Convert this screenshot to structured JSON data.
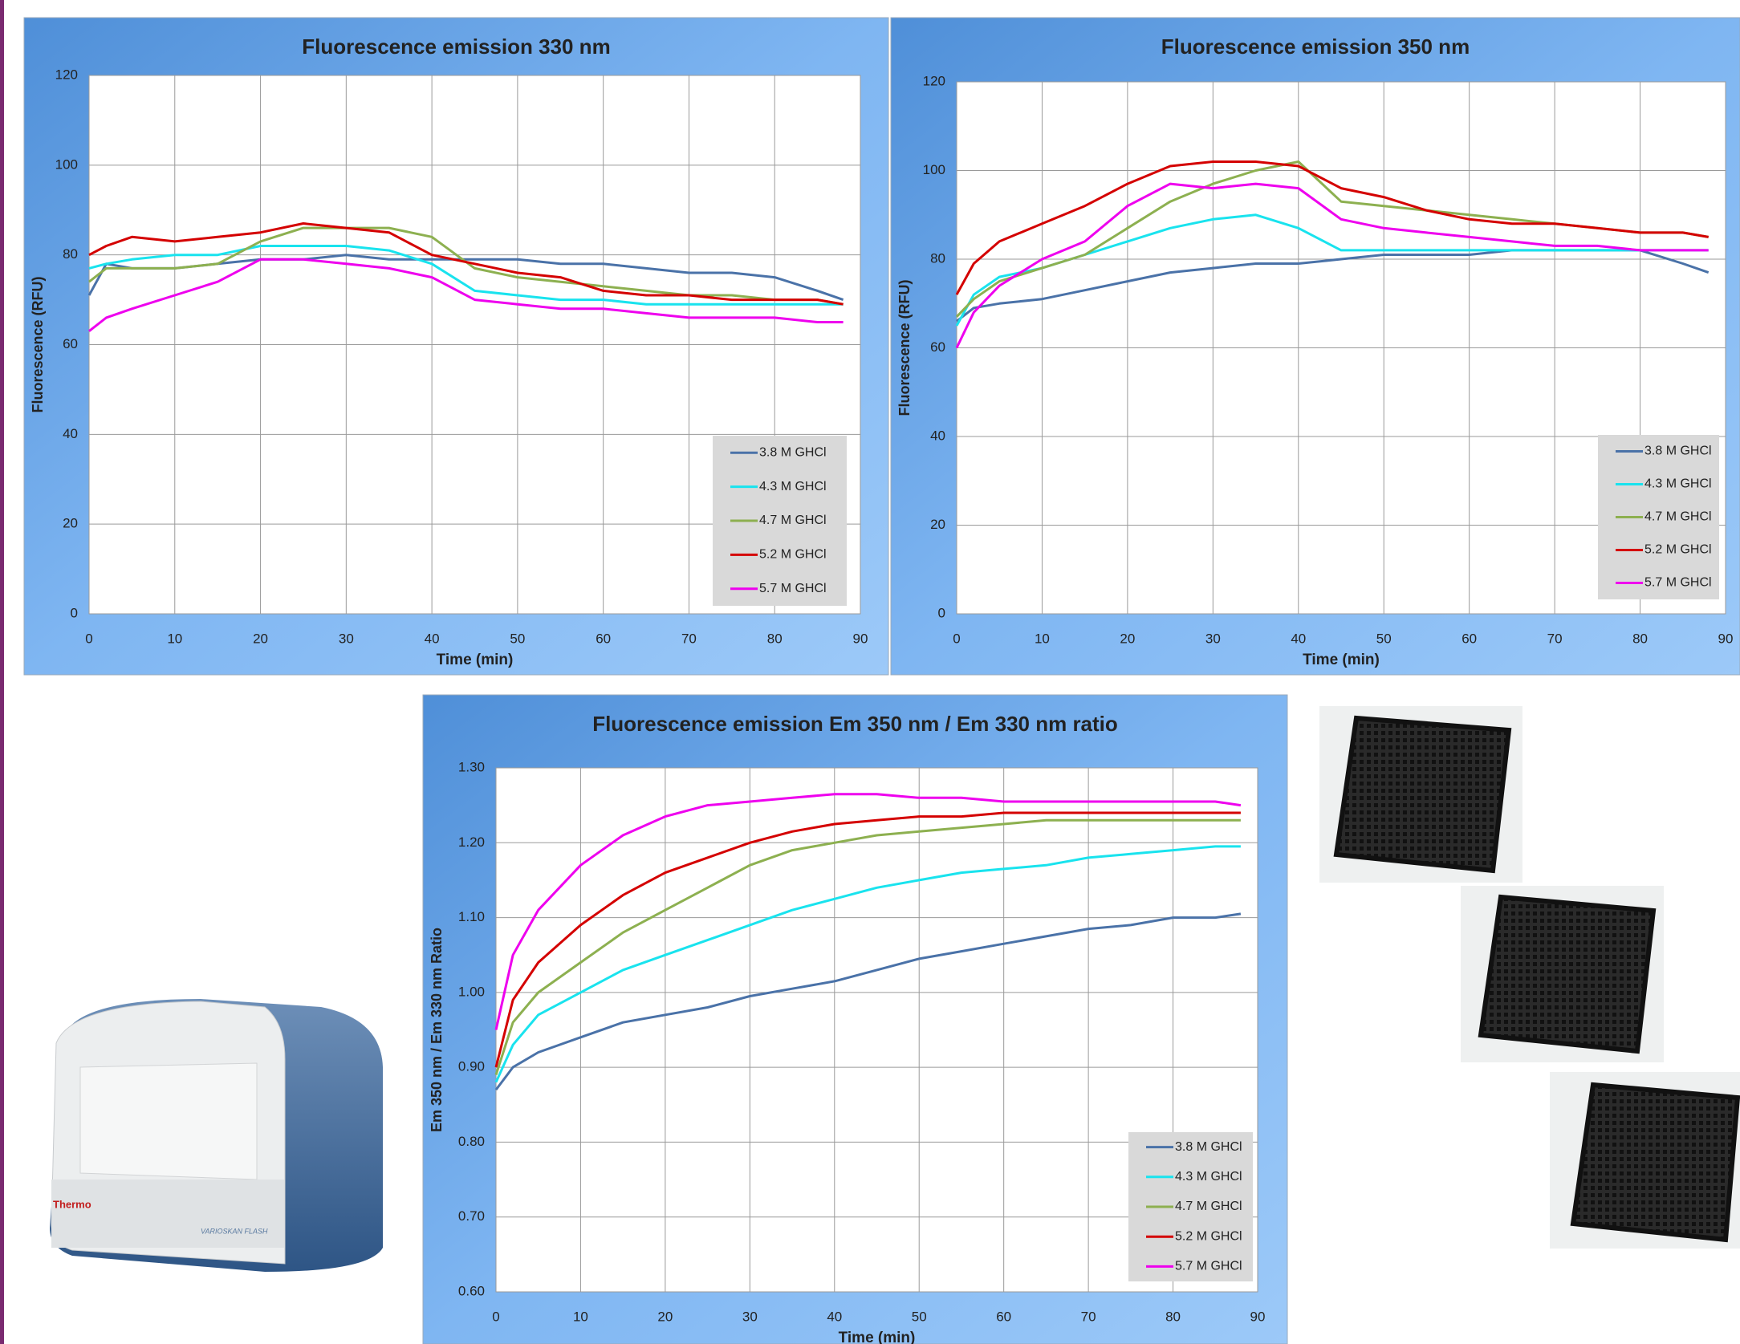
{
  "chart_data": [
    {
      "type": "line",
      "title": "Fluorescence emission 330 nm",
      "xlabel": "Time (min)",
      "ylabel": "Fluorescence (RFU)",
      "x": [
        0,
        2,
        5,
        10,
        15,
        20,
        25,
        30,
        35,
        40,
        45,
        50,
        55,
        60,
        65,
        70,
        75,
        80,
        85,
        88
      ],
      "series": [
        {
          "name": "3.8 M GHCl",
          "color": "#4a72a8",
          "values": [
            71,
            78,
            77,
            77,
            78,
            79,
            79,
            80,
            79,
            79,
            79,
            79,
            78,
            78,
            77,
            76,
            76,
            75,
            72,
            70
          ]
        },
        {
          "name": "4.3 M GHCl",
          "color": "#19e3ee",
          "values": [
            77,
            78,
            79,
            80,
            80,
            82,
            82,
            82,
            81,
            78,
            72,
            71,
            70,
            70,
            69,
            69,
            69,
            69,
            69,
            69
          ]
        },
        {
          "name": "4.7 M GHCl",
          "color": "#8db050",
          "values": [
            74,
            77,
            77,
            77,
            78,
            83,
            86,
            86,
            86,
            84,
            77,
            75,
            74,
            73,
            72,
            71,
            71,
            70,
            70,
            69
          ]
        },
        {
          "name": "5.2 M GHCl",
          "color": "#d40000",
          "values": [
            80,
            82,
            84,
            83,
            84,
            85,
            87,
            86,
            85,
            80,
            78,
            76,
            75,
            72,
            71,
            71,
            70,
            70,
            70,
            69
          ]
        },
        {
          "name": "5.7 M GHCl",
          "color": "#ee00ee",
          "values": [
            63,
            66,
            68,
            71,
            74,
            79,
            79,
            78,
            77,
            75,
            70,
            69,
            68,
            68,
            67,
            66,
            66,
            66,
            65,
            65
          ]
        }
      ],
      "xlim": [
        0,
        90
      ],
      "xticks": [
        0,
        10,
        20,
        30,
        40,
        50,
        60,
        70,
        80,
        90
      ],
      "ylim": [
        0,
        120
      ],
      "yticks": [
        0,
        20,
        40,
        60,
        80,
        100,
        120
      ],
      "grid": true,
      "legend": "lower right"
    },
    {
      "type": "line",
      "title": "Fluorescence emission 350 nm",
      "xlabel": "Time (min)",
      "ylabel": "Fluorescence (RFU)",
      "x": [
        0,
        2,
        5,
        10,
        15,
        20,
        25,
        30,
        35,
        40,
        45,
        50,
        55,
        60,
        65,
        70,
        75,
        80,
        85,
        88
      ],
      "series": [
        {
          "name": "3.8 M GHCl",
          "color": "#4a72a8",
          "values": [
            66,
            69,
            70,
            71,
            73,
            75,
            77,
            78,
            79,
            79,
            80,
            81,
            81,
            81,
            82,
            82,
            82,
            82,
            79,
            77
          ]
        },
        {
          "name": "4.3 M GHCl",
          "color": "#19e3ee",
          "values": [
            65,
            72,
            76,
            78,
            81,
            84,
            87,
            89,
            90,
            87,
            82,
            82,
            82,
            82,
            82,
            82,
            82,
            82,
            82,
            82
          ]
        },
        {
          "name": "4.7 M GHCl",
          "color": "#8db050",
          "values": [
            67,
            71,
            75,
            78,
            81,
            87,
            93,
            97,
            100,
            102,
            93,
            92,
            91,
            90,
            89,
            88,
            87,
            86,
            86,
            85
          ]
        },
        {
          "name": "5.2 M GHCl",
          "color": "#d40000",
          "values": [
            72,
            79,
            84,
            88,
            92,
            97,
            101,
            102,
            102,
            101,
            96,
            94,
            91,
            89,
            88,
            88,
            87,
            86,
            86,
            85
          ]
        },
        {
          "name": "5.7 M GHCl",
          "color": "#ee00ee",
          "values": [
            60,
            68,
            74,
            80,
            84,
            92,
            97,
            96,
            97,
            96,
            89,
            87,
            86,
            85,
            84,
            83,
            83,
            82,
            82,
            82
          ]
        }
      ],
      "xlim": [
        0,
        90
      ],
      "xticks": [
        0,
        10,
        20,
        30,
        40,
        50,
        60,
        70,
        80,
        90
      ],
      "ylim": [
        0,
        120
      ],
      "yticks": [
        0,
        20,
        40,
        60,
        80,
        100,
        120
      ],
      "grid": true,
      "legend": "lower right"
    },
    {
      "type": "line",
      "title": "Fluorescence emission Em 350 nm / Em 330 nm ratio",
      "xlabel": "Time (min)",
      "ylabel": "Em 350 nm / Em 330 nm Ratio",
      "x": [
        0,
        2,
        5,
        10,
        15,
        20,
        25,
        30,
        35,
        40,
        45,
        50,
        55,
        60,
        65,
        70,
        75,
        80,
        85,
        88
      ],
      "series": [
        {
          "name": "3.8 M GHCl",
          "color": "#4a72a8",
          "values": [
            0.87,
            0.9,
            0.92,
            0.94,
            0.96,
            0.97,
            0.98,
            0.995,
            1.005,
            1.015,
            1.03,
            1.045,
            1.055,
            1.065,
            1.075,
            1.085,
            1.09,
            1.1,
            1.1,
            1.105
          ]
        },
        {
          "name": "4.3 M GHCl",
          "color": "#19e3ee",
          "values": [
            0.88,
            0.93,
            0.97,
            1.0,
            1.03,
            1.05,
            1.07,
            1.09,
            1.11,
            1.125,
            1.14,
            1.15,
            1.16,
            1.165,
            1.17,
            1.18,
            1.185,
            1.19,
            1.195,
            1.195
          ]
        },
        {
          "name": "4.7 M GHCl",
          "color": "#8db050",
          "values": [
            0.89,
            0.96,
            1.0,
            1.04,
            1.08,
            1.11,
            1.14,
            1.17,
            1.19,
            1.2,
            1.21,
            1.215,
            1.22,
            1.225,
            1.23,
            1.23,
            1.23,
            1.23,
            1.23,
            1.23
          ]
        },
        {
          "name": "5.2 M GHCl",
          "color": "#d40000",
          "values": [
            0.9,
            0.99,
            1.04,
            1.09,
            1.13,
            1.16,
            1.18,
            1.2,
            1.215,
            1.225,
            1.23,
            1.235,
            1.235,
            1.24,
            1.24,
            1.24,
            1.24,
            1.24,
            1.24,
            1.24
          ]
        },
        {
          "name": "5.7 M GHCl",
          "color": "#ee00ee",
          "values": [
            0.95,
            1.05,
            1.11,
            1.17,
            1.21,
            1.235,
            1.25,
            1.255,
            1.26,
            1.265,
            1.265,
            1.26,
            1.26,
            1.255,
            1.255,
            1.255,
            1.255,
            1.255,
            1.255,
            1.25
          ]
        }
      ],
      "xlim": [
        0,
        90
      ],
      "xticks": [
        0,
        10,
        20,
        30,
        40,
        50,
        60,
        70,
        80,
        90
      ],
      "ylim": [
        0.6,
        1.3
      ],
      "yticks": [
        {
          "value": 0.6,
          "label": "0.60"
        },
        {
          "value": 0.7,
          "label": "0.70"
        },
        {
          "value": 0.8,
          "label": "0.80"
        },
        {
          "value": 0.9,
          "label": "0.90"
        },
        {
          "value": 1.0,
          "label": "1.00"
        },
        {
          "value": 1.1,
          "label": "1.10"
        },
        {
          "value": 1.2,
          "label": "1.20"
        },
        {
          "value": 1.3,
          "label": "1.30"
        }
      ],
      "grid": true,
      "legend": "lower right"
    }
  ],
  "images": {
    "instrument_brand": "Thermo",
    "instrument_model": "VARIOSKAN FLASH"
  }
}
